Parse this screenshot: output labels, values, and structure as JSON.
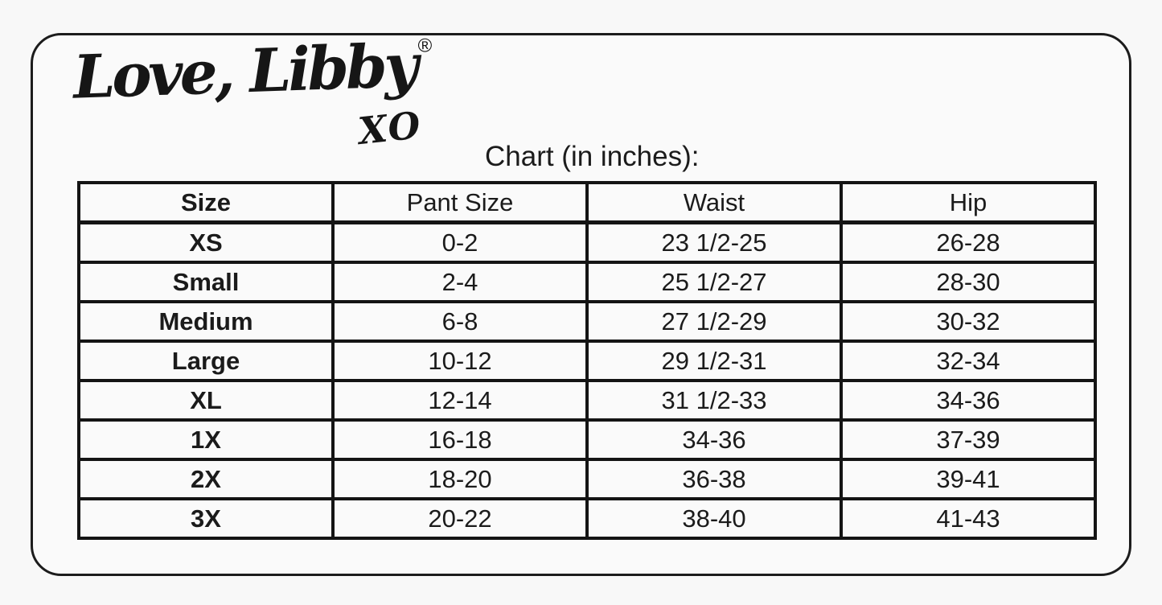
{
  "colors": {
    "ink": "#1b1b1b",
    "line": "#141414",
    "background": "#f8f8f8",
    "card_background": "#fafafa"
  },
  "brand": {
    "name": "Love, Libby",
    "registered_mark": "®",
    "tagline": "XO"
  },
  "chart_title": "Chart (in inches):",
  "chart_data": {
    "type": "table",
    "title": "Chart (in inches):",
    "columns": [
      "Size",
      "Pant Size",
      "Waist",
      "Hip"
    ],
    "rows": [
      [
        "XS",
        "0-2",
        "23 1/2-25",
        "26-28"
      ],
      [
        "Small",
        "2-4",
        "25 1/2-27",
        "28-30"
      ],
      [
        "Medium",
        "6-8",
        "27 1/2-29",
        "30-32"
      ],
      [
        "Large",
        "10-12",
        "29 1/2-31",
        "32-34"
      ],
      [
        "XL",
        "12-14",
        "31 1/2-33",
        "34-36"
      ],
      [
        "1X",
        "16-18",
        "34-36",
        "37-39"
      ],
      [
        "2X",
        "18-20",
        "36-38",
        "39-41"
      ],
      [
        "3X",
        "20-22",
        "38-40",
        "41-43"
      ]
    ]
  }
}
